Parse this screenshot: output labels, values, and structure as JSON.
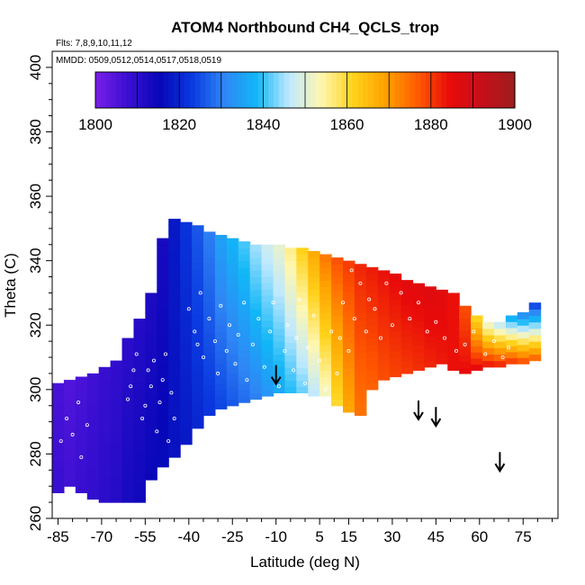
{
  "chart_data": {
    "type": "heatmap",
    "title": "ATOM4 Northbound CH4_QCLS_trop",
    "flights_label": "Flts: 7,8,9,10,11,12",
    "dates_label": "MMDD: 0509,0512,0514,0517,0518,0519",
    "xlabel": "Latitude (deg N)",
    "ylabel": "Theta (C)",
    "xlim": [
      -87,
      87
    ],
    "ylim": [
      260,
      405
    ],
    "x_ticks": [
      -85,
      -70,
      -55,
      -40,
      -25,
      -10,
      5,
      15,
      30,
      45,
      60,
      75
    ],
    "y_ticks": [
      260,
      280,
      300,
      320,
      340,
      360,
      380,
      400
    ],
    "y_tick_labels": [
      "260",
      "280",
      "300",
      "320",
      "340",
      "360",
      "380",
      "400"
    ],
    "x_tick_labels": [
      "-85",
      "-70",
      "-55",
      "-40",
      "-25",
      "-10",
      "5",
      "15",
      "30",
      "45",
      "60",
      "75"
    ],
    "colorbar": {
      "min": 1800,
      "max": 1900,
      "tick_values": [
        1800,
        1820,
        1840,
        1860,
        1880,
        1900
      ],
      "tick_labels": [
        "1800",
        "1820",
        "1840",
        "1860",
        "1880",
        "1900"
      ],
      "colors": [
        "#7a1ee8",
        "#3a0fd2",
        "#0707b8",
        "#0a3ae0",
        "#2f86f5",
        "#11b7f7",
        "#bfe9ff",
        "#fff7b0",
        "#ffd21a",
        "#ffa100",
        "#ff5a00",
        "#e80a0a",
        "#c4101a",
        "#9e1d1d"
      ]
    },
    "columns": [
      {
        "lat": -85,
        "bottom": 268,
        "top": 302,
        "v0": 1808,
        "v1": 1806
      },
      {
        "lat": -81,
        "bottom": 270,
        "top": 303,
        "v0": 1807,
        "v1": 1805
      },
      {
        "lat": -77,
        "bottom": 268,
        "top": 304,
        "v0": 1808,
        "v1": 1806
      },
      {
        "lat": -73,
        "bottom": 266,
        "top": 305,
        "v0": 1809,
        "v1": 1807
      },
      {
        "lat": -69,
        "bottom": 265,
        "top": 307,
        "v0": 1810,
        "v1": 1808
      },
      {
        "lat": -65,
        "bottom": 265,
        "top": 309,
        "v0": 1811,
        "v1": 1809
      },
      {
        "lat": -61,
        "bottom": 265,
        "top": 316,
        "v0": 1813,
        "v1": 1810
      },
      {
        "lat": -57,
        "bottom": 265,
        "top": 322,
        "v0": 1814,
        "v1": 1811
      },
      {
        "lat": -53,
        "bottom": 272,
        "top": 330,
        "v0": 1815,
        "v1": 1812
      },
      {
        "lat": -49,
        "bottom": 276,
        "top": 347,
        "v0": 1816,
        "v1": 1813
      },
      {
        "lat": -45,
        "bottom": 279,
        "top": 353,
        "v0": 1817,
        "v1": 1818
      },
      {
        "lat": -41,
        "bottom": 283,
        "top": 352,
        "v0": 1818,
        "v1": 1822
      },
      {
        "lat": -37,
        "bottom": 288,
        "top": 351,
        "v0": 1820,
        "v1": 1826
      },
      {
        "lat": -33,
        "bottom": 292,
        "top": 349,
        "v0": 1822,
        "v1": 1830
      },
      {
        "lat": -29,
        "bottom": 294,
        "top": 348,
        "v0": 1824,
        "v1": 1835
      },
      {
        "lat": -25,
        "bottom": 295,
        "top": 347,
        "v0": 1826,
        "v1": 1838
      },
      {
        "lat": -21,
        "bottom": 296,
        "top": 346,
        "v0": 1828,
        "v1": 1841
      },
      {
        "lat": -17,
        "bottom": 297,
        "top": 345,
        "v0": 1830,
        "v1": 1845
      },
      {
        "lat": -13,
        "bottom": 298,
        "top": 345,
        "v0": 1833,
        "v1": 1848
      },
      {
        "lat": -9,
        "bottom": 299,
        "top": 345,
        "v0": 1836,
        "v1": 1851
      },
      {
        "lat": -5,
        "bottom": 299,
        "top": 344,
        "v0": 1839,
        "v1": 1856
      },
      {
        "lat": -1,
        "bottom": 299,
        "top": 344,
        "v0": 1842,
        "v1": 1862
      },
      {
        "lat": 3,
        "bottom": 298,
        "top": 343,
        "v0": 1846,
        "v1": 1868
      },
      {
        "lat": 7,
        "bottom": 298,
        "top": 342,
        "v0": 1852,
        "v1": 1874
      },
      {
        "lat": 11,
        "bottom": 295,
        "top": 341,
        "v0": 1860,
        "v1": 1878
      },
      {
        "lat": 15,
        "bottom": 293,
        "top": 340,
        "v0": 1868,
        "v1": 1880
      },
      {
        "lat": 19,
        "bottom": 292,
        "top": 339,
        "v0": 1874,
        "v1": 1882
      },
      {
        "lat": 23,
        "bottom": 300,
        "top": 338,
        "v0": 1876,
        "v1": 1883
      },
      {
        "lat": 27,
        "bottom": 303,
        "top": 337,
        "v0": 1878,
        "v1": 1884
      },
      {
        "lat": 31,
        "bottom": 304,
        "top": 336,
        "v0": 1879,
        "v1": 1885
      },
      {
        "lat": 35,
        "bottom": 305,
        "top": 334,
        "v0": 1880,
        "v1": 1886
      },
      {
        "lat": 39,
        "bottom": 306,
        "top": 333,
        "v0": 1881,
        "v1": 1886
      },
      {
        "lat": 43,
        "bottom": 307,
        "top": 332,
        "v0": 1882,
        "v1": 1887
      },
      {
        "lat": 47,
        "bottom": 308,
        "top": 331,
        "v0": 1883,
        "v1": 1886
      },
      {
        "lat": 51,
        "bottom": 306,
        "top": 330,
        "v0": 1884,
        "v1": 1884
      },
      {
        "lat": 55,
        "bottom": 305,
        "top": 326,
        "v0": 1885,
        "v1": 1878
      },
      {
        "lat": 59,
        "bottom": 306,
        "top": 323,
        "v0": 1886,
        "v1": 1860
      },
      {
        "lat": 63,
        "bottom": 307,
        "top": 321,
        "v0": 1885,
        "v1": 1850
      },
      {
        "lat": 67,
        "bottom": 307,
        "top": 321,
        "v0": 1884,
        "v1": 1845
      },
      {
        "lat": 71,
        "bottom": 308,
        "top": 323,
        "v0": 1882,
        "v1": 1835
      },
      {
        "lat": 75,
        "bottom": 308,
        "top": 324,
        "v0": 1880,
        "v1": 1830
      },
      {
        "lat": 79,
        "bottom": 309,
        "top": 327,
        "v0": 1878,
        "v1": 1822
      }
    ],
    "points": [
      [
        -84,
        284
      ],
      [
        -82,
        291
      ],
      [
        -80,
        286
      ],
      [
        -78,
        296
      ],
      [
        -77,
        279
      ],
      [
        -75,
        289
      ],
      [
        -61,
        297
      ],
      [
        -60,
        301
      ],
      [
        -59,
        306
      ],
      [
        -58,
        311
      ],
      [
        -56,
        291
      ],
      [
        -55,
        295
      ],
      [
        -54,
        306
      ],
      [
        -53,
        301
      ],
      [
        -52,
        309
      ],
      [
        -51,
        287
      ],
      [
        -50,
        296
      ],
      [
        -49,
        303
      ],
      [
        -48,
        311
      ],
      [
        -47,
        284
      ],
      [
        -46,
        299
      ],
      [
        -45,
        291
      ],
      [
        -40,
        325
      ],
      [
        -38,
        318
      ],
      [
        -37,
        314
      ],
      [
        -36,
        330
      ],
      [
        -35,
        310
      ],
      [
        -33,
        322
      ],
      [
        -31,
        315
      ],
      [
        -30,
        305
      ],
      [
        -29,
        326
      ],
      [
        -27,
        312
      ],
      [
        -26,
        320
      ],
      [
        -24,
        308
      ],
      [
        -23,
        317
      ],
      [
        -21,
        327
      ],
      [
        -20,
        303
      ],
      [
        -18,
        314
      ],
      [
        -16,
        322
      ],
      [
        -14,
        307
      ],
      [
        -12,
        318
      ],
      [
        -11,
        327
      ],
      [
        -9,
        301
      ],
      [
        -7,
        312
      ],
      [
        -6,
        320
      ],
      [
        -4,
        306
      ],
      [
        -3,
        316
      ],
      [
        -2,
        328
      ],
      [
        0,
        302
      ],
      [
        1,
        313
      ],
      [
        3,
        323
      ],
      [
        5,
        309
      ],
      [
        7,
        300
      ],
      [
        9,
        318
      ],
      [
        11,
        305
      ],
      [
        12,
        316
      ],
      [
        13,
        327
      ],
      [
        15,
        312
      ],
      [
        16,
        337
      ],
      [
        17,
        322
      ],
      [
        19,
        333
      ],
      [
        21,
        318
      ],
      [
        22,
        328
      ],
      [
        24,
        325
      ],
      [
        26,
        316
      ],
      [
        28,
        333
      ],
      [
        30,
        320
      ],
      [
        33,
        330
      ],
      [
        36,
        322
      ],
      [
        39,
        327
      ],
      [
        42,
        318
      ],
      [
        45,
        321
      ],
      [
        48,
        316
      ],
      [
        52,
        312
      ],
      [
        55,
        314
      ],
      [
        58,
        318
      ],
      [
        62,
        311
      ],
      [
        65,
        315
      ],
      [
        68,
        310
      ],
      [
        70,
        313
      ]
    ],
    "annotations": [
      {
        "type": "arrow-down",
        "lat": -10,
        "theta": 302
      },
      {
        "type": "arrow-down",
        "lat": 39,
        "theta": 291
      },
      {
        "type": "arrow-down",
        "lat": 45,
        "theta": 289
      },
      {
        "type": "arrow-down",
        "lat": 67,
        "theta": 275
      }
    ]
  }
}
